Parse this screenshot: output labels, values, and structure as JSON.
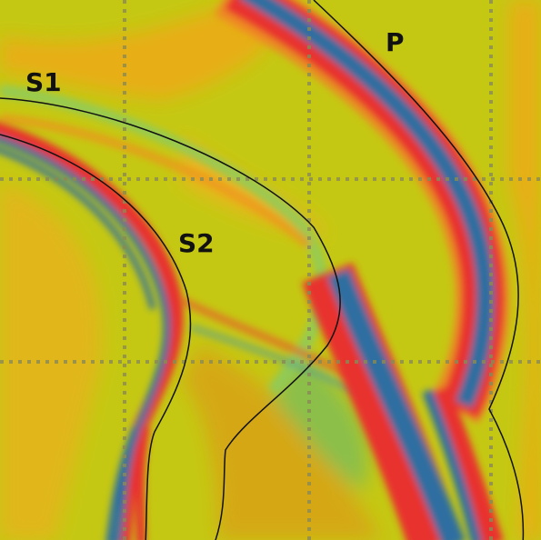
{
  "labels": [
    "S1",
    "S2",
    "P"
  ]
}
